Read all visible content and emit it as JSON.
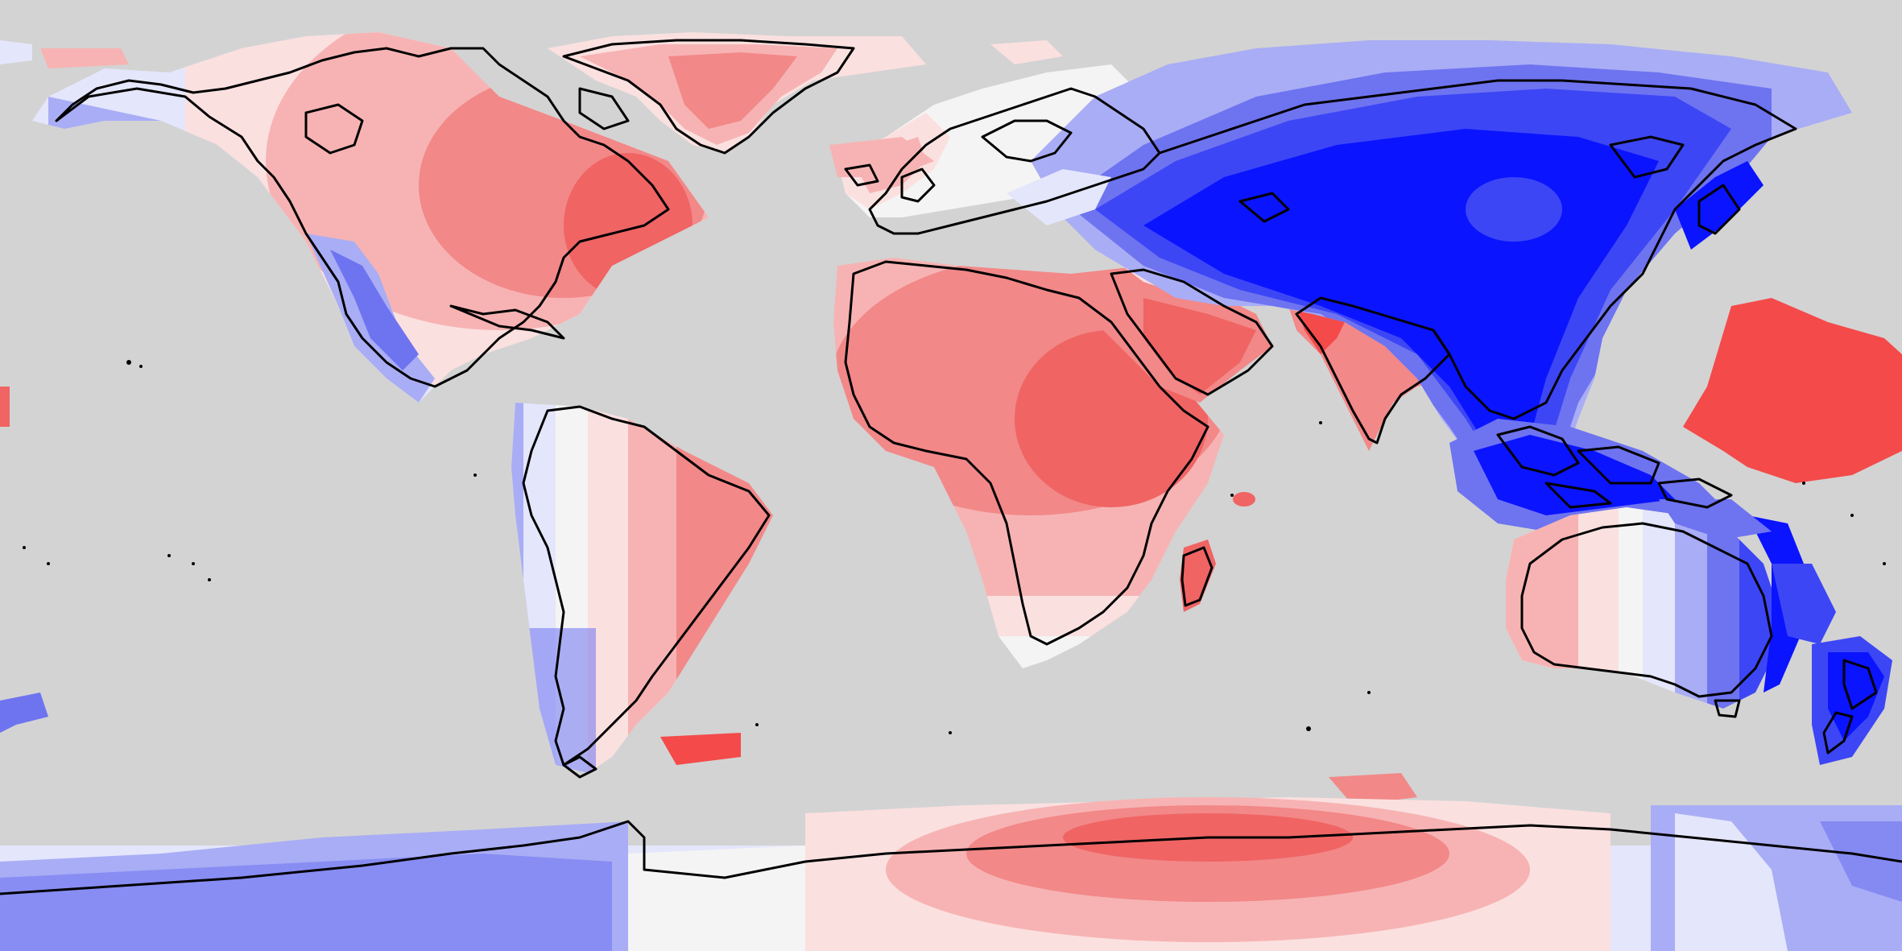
{
  "map": {
    "projection": "equirectangular",
    "ocean_color": "#d3d3d3",
    "coastline_color": "#000000",
    "scale_colors": {
      "strong_negative": "#0a14ff",
      "negative": "#3c46f5",
      "moderate_negative": "#6e73f0",
      "weak_negative": "#a9adf5",
      "slight_negative": "#e4e6fb",
      "neutral": "#f4f4f4",
      "slight_positive": "#fbe0e0",
      "weak_positive": "#f7b3b3",
      "moderate_positive": "#f28888",
      "positive": "#f06464",
      "strong_positive": "#f44a4a"
    },
    "regions": [
      {
        "name": "north-america",
        "anomaly": "positive"
      },
      {
        "name": "greenland",
        "anomaly": "positive"
      },
      {
        "name": "south-america",
        "anomaly": "positive"
      },
      {
        "name": "europe",
        "anomaly": "slight"
      },
      {
        "name": "africa",
        "anomaly": "positive"
      },
      {
        "name": "arabia-india",
        "anomaly": "strong_positive"
      },
      {
        "name": "asia",
        "anomaly": "strong_negative"
      },
      {
        "name": "southeast-asia",
        "anomaly": "strong_negative"
      },
      {
        "name": "australia",
        "anomaly": "negative"
      },
      {
        "name": "new-zealand",
        "anomaly": "strong_negative"
      },
      {
        "name": "central-pacific",
        "anomaly": "strong_positive"
      },
      {
        "name": "antarctica",
        "anomaly": "mixed"
      }
    ]
  }
}
